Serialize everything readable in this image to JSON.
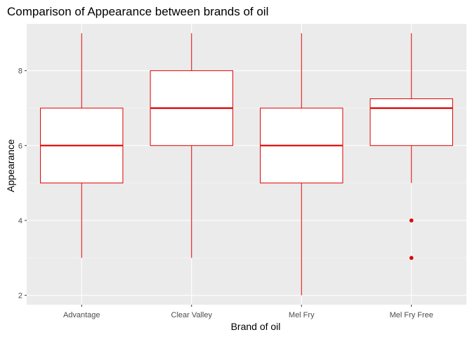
{
  "chart_data": {
    "type": "box",
    "title": "Comparison of Appearance between brands of oil",
    "xlabel": "Brand of oil",
    "ylabel": "Appearance",
    "ylim": [
      1.75,
      9.25
    ],
    "yticks": [
      2,
      4,
      6,
      8
    ],
    "grid": true,
    "categories": [
      "Advantage",
      "Clear Valley",
      "Mel Fry",
      "Mel Fry Free"
    ],
    "boxes": [
      {
        "min": 3,
        "q1": 5,
        "median": 6,
        "q3": 7,
        "max": 9,
        "outliers": []
      },
      {
        "min": 3,
        "q1": 6,
        "median": 7,
        "q3": 8,
        "max": 9,
        "outliers": []
      },
      {
        "min": 2,
        "q1": 5,
        "median": 6,
        "q3": 7,
        "max": 9,
        "outliers": []
      },
      {
        "min": 5,
        "q1": 6,
        "median": 7,
        "q3": 7.25,
        "max": 9,
        "outliers": [
          4,
          3
        ]
      }
    ],
    "colors": {
      "panel": "#ebebeb",
      "grid_major": "#ffffff",
      "grid_minor": "#f5f5f5",
      "box_stroke": "#e00000",
      "box_fill": "#ffffff",
      "tick": "#333333"
    }
  }
}
